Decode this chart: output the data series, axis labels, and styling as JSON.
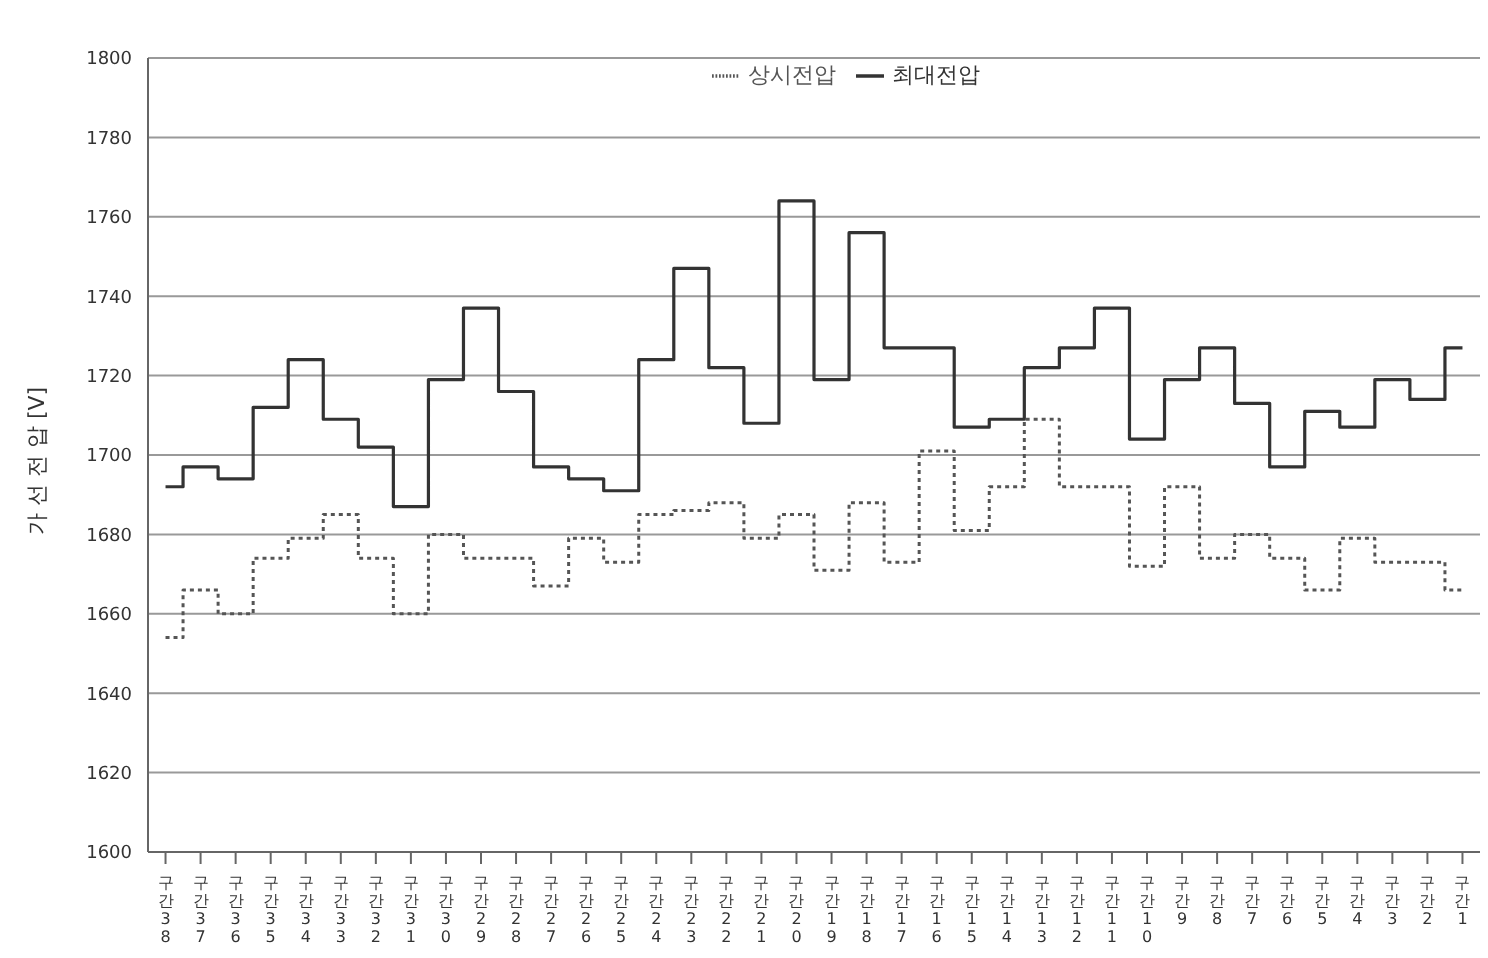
{
  "chart_data": {
    "type": "step",
    "ylabel": "가 선 전 압 [V]",
    "categories": [
      "구간38",
      "구간37",
      "구간36",
      "구간35",
      "구간34",
      "구간33",
      "구간32",
      "구간31",
      "구간30",
      "구간29",
      "구간28",
      "구간27",
      "구간26",
      "구간25",
      "구간24",
      "구간23",
      "구간22",
      "구간21",
      "구간20",
      "구간19",
      "구간18",
      "구간17",
      "구간16",
      "구간15",
      "구간14",
      "구간13",
      "구간12",
      "구간11",
      "구간10",
      "구간9",
      "구간8",
      "구간7",
      "구간6",
      "구간5",
      "구간4",
      "구간3",
      "구간2",
      "구간1"
    ],
    "series": [
      {
        "name": "최대전압",
        "color": "#333333",
        "line_style": "solid",
        "values": [
          1692,
          1697,
          1694,
          1712,
          1724,
          1709,
          1702,
          1687,
          1719,
          1737,
          1716,
          1697,
          1694,
          1691,
          1724,
          1747,
          1722,
          1708,
          1764,
          1719,
          1756,
          1727,
          1727,
          1707,
          1709,
          1722,
          1727,
          1737,
          1704,
          1719,
          1727,
          1713,
          1697,
          1711,
          1707,
          1719,
          1714,
          1727
        ]
      },
      {
        "name": "상시전압",
        "color": "#555555",
        "line_style": "dotted",
        "values": [
          1654,
          1666,
          1660,
          1674,
          1679,
          1685,
          1674,
          1660,
          1680,
          1674,
          1674,
          1667,
          1679,
          1673,
          1685,
          1686,
          1688,
          1679,
          1685,
          1671,
          1688,
          1673,
          1701,
          1681,
          1692,
          1709,
          1692,
          1692,
          1672,
          1692,
          1674,
          1680,
          1674,
          1666,
          1679,
          1673,
          1673,
          1666
        ]
      }
    ],
    "ylim": [
      1600,
      1800
    ],
    "yticks": [
      1600,
      1620,
      1640,
      1660,
      1680,
      1700,
      1720,
      1740,
      1760,
      1780,
      1800
    ],
    "grid": "y",
    "legend": "top",
    "marker": "none"
  }
}
